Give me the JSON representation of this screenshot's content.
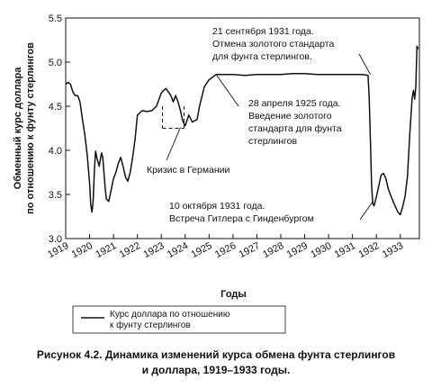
{
  "chart_data": {
    "type": "line",
    "xlabel": "Годы",
    "ylabel": [
      "Обменный курс доллара",
      "по отношению к фунту стерлингов"
    ],
    "ylim": [
      3.0,
      5.5
    ],
    "xlim": [
      1919,
      1933.8
    ],
    "yticks": [
      "3.0",
      "3.5",
      "4.0",
      "4.5",
      "5.0",
      "5.5"
    ],
    "xticks": [
      "1919",
      "1920",
      "1921",
      "1922",
      "1923",
      "1924",
      "1925",
      "1926",
      "1927",
      "1928",
      "1929",
      "1930",
      "1931",
      "1932",
      "1933"
    ],
    "grid": false,
    "legend_position": "below-left",
    "series": [
      {
        "name": "Курс доллара по отношению к фунту стерлингов",
        "legend_lines": [
          "Курс доллара по отношению",
          "к фунту стерлингов"
        ],
        "x": [
          1919.0,
          1919.1,
          1919.2,
          1919.3,
          1919.4,
          1919.5,
          1919.6,
          1919.7,
          1919.8,
          1919.9,
          1920.0,
          1920.05,
          1920.1,
          1920.15,
          1920.2,
          1920.25,
          1920.3,
          1920.4,
          1920.5,
          1920.55,
          1920.65,
          1920.7,
          1920.8,
          1920.9,
          1921.0,
          1921.1,
          1921.2,
          1921.3,
          1921.4,
          1921.5,
          1921.6,
          1921.7,
          1921.8,
          1921.9,
          1922.0,
          1922.2,
          1922.4,
          1922.6,
          1922.8,
          1923.0,
          1923.1,
          1923.2,
          1923.3,
          1923.4,
          1923.5,
          1923.6,
          1923.7,
          1923.8,
          1923.9,
          1924.0,
          1924.15,
          1924.3,
          1924.5,
          1924.6,
          1924.8,
          1925.0,
          1925.3,
          1925.6,
          1926.0,
          1926.5,
          1927.0,
          1927.5,
          1928.0,
          1928.5,
          1929.0,
          1929.5,
          1930.0,
          1930.5,
          1931.0,
          1931.4,
          1931.65,
          1931.7,
          1931.75,
          1931.8,
          1931.85,
          1931.9,
          1932.0,
          1932.1,
          1932.2,
          1932.3,
          1932.4,
          1932.5,
          1932.6,
          1932.7,
          1932.8,
          1932.9,
          1933.0,
          1933.1,
          1933.2,
          1933.3,
          1933.4,
          1933.5,
          1933.55,
          1933.6,
          1933.65,
          1933.7,
          1933.75
        ],
        "y": [
          4.75,
          4.77,
          4.75,
          4.66,
          4.62,
          4.62,
          4.55,
          4.35,
          4.18,
          3.95,
          3.62,
          3.38,
          3.3,
          3.42,
          3.78,
          3.99,
          3.92,
          3.82,
          3.97,
          3.92,
          3.58,
          3.45,
          3.42,
          3.55,
          3.68,
          3.75,
          3.85,
          3.92,
          3.82,
          3.7,
          3.65,
          3.75,
          3.92,
          4.12,
          4.4,
          4.45,
          4.44,
          4.45,
          4.5,
          4.65,
          4.68,
          4.7,
          4.66,
          4.62,
          4.55,
          4.62,
          4.55,
          4.45,
          4.33,
          4.28,
          4.4,
          4.32,
          4.35,
          4.5,
          4.72,
          4.8,
          4.86,
          4.86,
          4.86,
          4.85,
          4.86,
          4.86,
          4.86,
          4.87,
          4.87,
          4.86,
          4.86,
          4.86,
          4.86,
          4.86,
          4.85,
          4.6,
          4.1,
          3.6,
          3.4,
          3.37,
          3.47,
          3.6,
          3.72,
          3.74,
          3.68,
          3.56,
          3.49,
          3.42,
          3.36,
          3.3,
          3.27,
          3.36,
          3.48,
          3.7,
          4.2,
          4.6,
          4.68,
          4.58,
          4.72,
          5.18,
          5.15
        ]
      }
    ],
    "annotations": [
      {
        "lines": [
          "21 сентября 1931 года.",
          "Отмена золотого стандарта",
          "для фунта стерлингов."
        ],
        "x": 1931.75,
        "y": 4.86
      },
      {
        "lines": [
          "28 апреля 1925 года.",
          "Введение золотого",
          "стандарта для фунта",
          "стерлингов"
        ],
        "x": 1925.32,
        "y": 4.85
      },
      {
        "lines": [
          "Кризис в Германии"
        ],
        "x": 1923.8,
        "y": 4.26
      },
      {
        "lines": [
          "10 октября 1931 года.",
          "Встреча Гитлера с Гинденбургом"
        ],
        "x": 1931.85,
        "y": 3.42
      }
    ]
  },
  "caption": {
    "line1": "Рисунок 4.2. Динамика изменений курса обмена фунта стерлингов",
    "line2": "и доллара, 1919–1933 годы."
  }
}
